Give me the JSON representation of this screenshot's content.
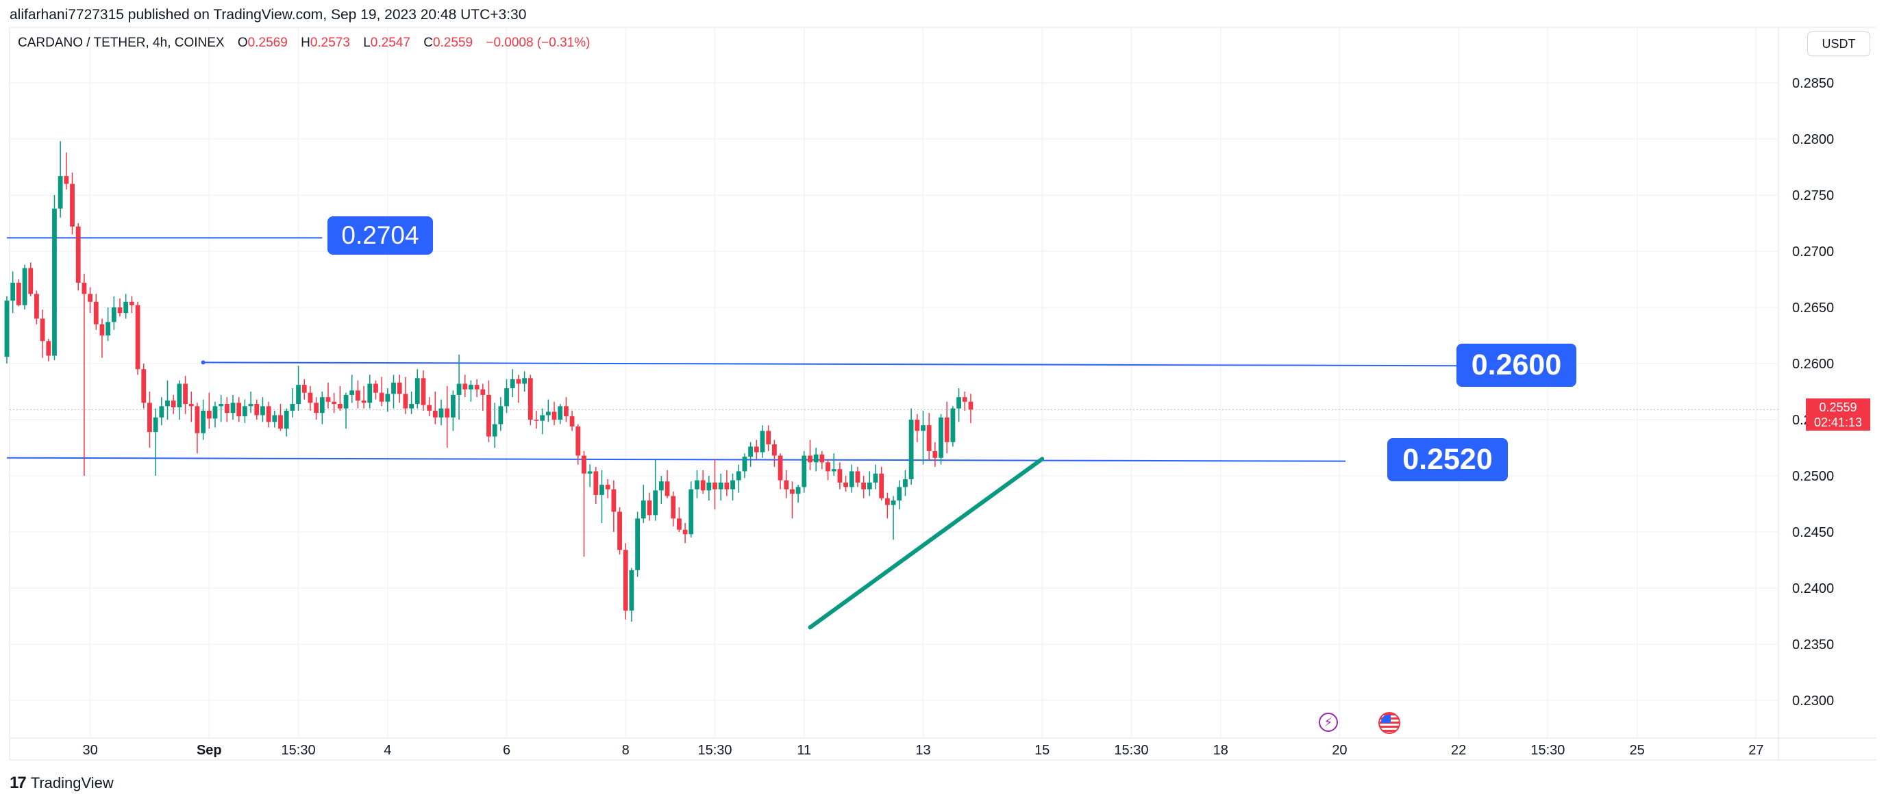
{
  "header": {
    "publisher_line": "alifarhani7727315 published on TradingView.com, Sep 19, 2023 20:48 UTC+3:30"
  },
  "legend": {
    "symbol": "CARDANO / TETHER, 4h, COINEX",
    "open_label": "O",
    "open": "0.2569",
    "high_label": "H",
    "high": "0.2573",
    "low_label": "L",
    "low": "0.2547",
    "close_label": "C",
    "close": "0.2559",
    "change": "−0.0008 (−0.31%)"
  },
  "currency_button": "USDT",
  "price_tag": {
    "price": "0.2559",
    "countdown": "02:41:13"
  },
  "callouts": [
    {
      "label": "0.2704"
    },
    {
      "label": "0.2600"
    },
    {
      "label": "0.2520"
    }
  ],
  "footer": {
    "brand": "TradingView",
    "mark": "17"
  },
  "colors": {
    "up": "#089981",
    "down": "#f23645",
    "drawing_line": "#2962ff",
    "trend_line": "#089981",
    "grid": "#f0f3fa",
    "callout_bg": "#2962ff"
  },
  "chart_data": {
    "type": "candlestick",
    "symbol": "CARDANO / TETHER",
    "interval": "4h",
    "exchange": "COINEX",
    "ylim": [
      0.2275,
      0.288
    ],
    "y_ticks": [
      "0.2850",
      "0.2800",
      "0.2750",
      "0.2700",
      "0.2650",
      "0.2600",
      "0.2550",
      "0.2500",
      "0.2450",
      "0.2400",
      "0.2350",
      "0.2300"
    ],
    "x_ticks": [
      {
        "label": "30",
        "bar": 14
      },
      {
        "label": "Sep",
        "bar": 34
      },
      {
        "label": "15:30",
        "bar": 49
      },
      {
        "label": "4",
        "bar": 64
      },
      {
        "label": "6",
        "bar": 84
      },
      {
        "label": "8",
        "bar": 104
      },
      {
        "label": "15:30",
        "bar": 119
      },
      {
        "label": "11",
        "bar": 134
      },
      {
        "label": "13",
        "bar": 154
      },
      {
        "label": "15",
        "bar": 174
      },
      {
        "label": "15:30",
        "bar": 189
      },
      {
        "label": "18",
        "bar": 204
      },
      {
        "label": "20",
        "bar": 224
      },
      {
        "label": "22",
        "bar": 244
      },
      {
        "label": "15:30",
        "bar": 259
      },
      {
        "label": "25",
        "bar": 274
      },
      {
        "label": "27",
        "bar": 294
      }
    ],
    "ohlc": [
      [
        0.2606,
        0.266,
        0.26,
        0.2656
      ],
      [
        0.2656,
        0.2682,
        0.2645,
        0.2672
      ],
      [
        0.2672,
        0.2675,
        0.2651,
        0.2652
      ],
      [
        0.2652,
        0.2688,
        0.2648,
        0.2685
      ],
      [
        0.2685,
        0.269,
        0.266,
        0.2662
      ],
      [
        0.2662,
        0.2665,
        0.2635,
        0.264
      ],
      [
        0.264,
        0.2648,
        0.2605,
        0.262
      ],
      [
        0.262,
        0.2622,
        0.2602,
        0.2607
      ],
      [
        0.2607,
        0.275,
        0.2603,
        0.2738
      ],
      [
        0.2738,
        0.2798,
        0.273,
        0.2767
      ],
      [
        0.2767,
        0.2788,
        0.2755,
        0.276
      ],
      [
        0.276,
        0.277,
        0.2715,
        0.2722
      ],
      [
        0.2722,
        0.2725,
        0.2665,
        0.2672
      ],
      [
        0.2672,
        0.268,
        0.25,
        0.2662
      ],
      [
        0.2662,
        0.2668,
        0.2645,
        0.2655
      ],
      [
        0.2655,
        0.2662,
        0.263,
        0.2635
      ],
      [
        0.2635,
        0.264,
        0.2605,
        0.2625
      ],
      [
        0.2625,
        0.265,
        0.262,
        0.2637
      ],
      [
        0.2637,
        0.266,
        0.263,
        0.265
      ],
      [
        0.265,
        0.2658,
        0.2642,
        0.2645
      ],
      [
        0.2645,
        0.2662,
        0.264,
        0.2655
      ],
      [
        0.2655,
        0.266,
        0.2645,
        0.2652
      ],
      [
        0.2652,
        0.2655,
        0.259,
        0.2595
      ],
      [
        0.2595,
        0.26,
        0.256,
        0.2565
      ],
      [
        0.2565,
        0.2575,
        0.2525,
        0.2539
      ],
      [
        0.2539,
        0.256,
        0.25,
        0.2552
      ],
      [
        0.2552,
        0.257,
        0.2545,
        0.2562
      ],
      [
        0.2562,
        0.2585,
        0.255,
        0.2567
      ],
      [
        0.2567,
        0.2572,
        0.2555,
        0.2561
      ],
      [
        0.2561,
        0.2585,
        0.255,
        0.2582
      ],
      [
        0.2582,
        0.2589,
        0.2555,
        0.2564
      ],
      [
        0.2564,
        0.2575,
        0.2548,
        0.2562
      ],
      [
        0.2562,
        0.2565,
        0.252,
        0.2538
      ],
      [
        0.2538,
        0.2568,
        0.2532,
        0.2558
      ],
      [
        0.2558,
        0.2574,
        0.2542,
        0.2551
      ],
      [
        0.2551,
        0.2566,
        0.2543,
        0.2562
      ],
      [
        0.2562,
        0.2572,
        0.2548,
        0.2564
      ],
      [
        0.2564,
        0.257,
        0.2548,
        0.2556
      ],
      [
        0.2556,
        0.2572,
        0.255,
        0.2565
      ],
      [
        0.2565,
        0.257,
        0.2548,
        0.2553
      ],
      [
        0.2553,
        0.2568,
        0.2547,
        0.2562
      ],
      [
        0.2562,
        0.2575,
        0.2556,
        0.2564
      ],
      [
        0.2564,
        0.2568,
        0.255,
        0.2554
      ],
      [
        0.2554,
        0.257,
        0.2548,
        0.2562
      ],
      [
        0.2562,
        0.2566,
        0.2543,
        0.2548
      ],
      [
        0.2548,
        0.2558,
        0.2543,
        0.2554
      ],
      [
        0.2554,
        0.2564,
        0.254,
        0.2542
      ],
      [
        0.2542,
        0.256,
        0.2535,
        0.2558
      ],
      [
        0.2558,
        0.2578,
        0.2552,
        0.2564
      ],
      [
        0.2564,
        0.2598,
        0.2558,
        0.2581
      ],
      [
        0.2581,
        0.2586,
        0.2568,
        0.2574
      ],
      [
        0.2574,
        0.258,
        0.2558,
        0.2565
      ],
      [
        0.2565,
        0.257,
        0.255,
        0.2556
      ],
      [
        0.2556,
        0.2575,
        0.2546,
        0.257
      ],
      [
        0.257,
        0.2583,
        0.256,
        0.2566
      ],
      [
        0.2566,
        0.2574,
        0.2556,
        0.2564
      ],
      [
        0.2564,
        0.258,
        0.2558,
        0.256
      ],
      [
        0.256,
        0.2574,
        0.2542,
        0.2572
      ],
      [
        0.2572,
        0.259,
        0.2565,
        0.2576
      ],
      [
        0.2576,
        0.2585,
        0.256,
        0.2567
      ],
      [
        0.2567,
        0.258,
        0.256,
        0.2565
      ],
      [
        0.2565,
        0.259,
        0.256,
        0.2582
      ],
      [
        0.2582,
        0.2585,
        0.2568,
        0.2574
      ],
      [
        0.2574,
        0.2588,
        0.2562,
        0.2566
      ],
      [
        0.2566,
        0.2578,
        0.2557,
        0.2573
      ],
      [
        0.2573,
        0.259,
        0.256,
        0.2583
      ],
      [
        0.2583,
        0.259,
        0.2565,
        0.2573
      ],
      [
        0.2573,
        0.2588,
        0.2555,
        0.256
      ],
      [
        0.256,
        0.2575,
        0.2555,
        0.2564
      ],
      [
        0.2564,
        0.2595,
        0.256,
        0.2587
      ],
      [
        0.2587,
        0.2594,
        0.2558,
        0.2563
      ],
      [
        0.2563,
        0.257,
        0.2553,
        0.2558
      ],
      [
        0.2558,
        0.2575,
        0.2546,
        0.2552
      ],
      [
        0.2552,
        0.2568,
        0.2545,
        0.256
      ],
      [
        0.256,
        0.258,
        0.2525,
        0.2552
      ],
      [
        0.2552,
        0.2576,
        0.254,
        0.2572
      ],
      [
        0.2572,
        0.2608,
        0.255,
        0.2582
      ],
      [
        0.2582,
        0.259,
        0.257,
        0.2577
      ],
      [
        0.2577,
        0.2585,
        0.2566,
        0.2581
      ],
      [
        0.2581,
        0.2586,
        0.257,
        0.2577
      ],
      [
        0.2577,
        0.2582,
        0.2558,
        0.2572
      ],
      [
        0.2572,
        0.2585,
        0.253,
        0.2535
      ],
      [
        0.2535,
        0.2565,
        0.2525,
        0.2546
      ],
      [
        0.2546,
        0.257,
        0.254,
        0.2562
      ],
      [
        0.2562,
        0.2586,
        0.2556,
        0.2578
      ],
      [
        0.2578,
        0.2595,
        0.257,
        0.2586
      ],
      [
        0.2586,
        0.259,
        0.2565,
        0.2582
      ],
      [
        0.2582,
        0.2593,
        0.2575,
        0.2587
      ],
      [
        0.2587,
        0.259,
        0.2545,
        0.255
      ],
      [
        0.255,
        0.2558,
        0.2542,
        0.2549
      ],
      [
        0.2549,
        0.256,
        0.2537,
        0.2554
      ],
      [
        0.2554,
        0.2568,
        0.2548,
        0.2557
      ],
      [
        0.2557,
        0.2566,
        0.2545,
        0.255
      ],
      [
        0.255,
        0.2564,
        0.2546,
        0.2562
      ],
      [
        0.2562,
        0.257,
        0.2548,
        0.2553
      ],
      [
        0.2553,
        0.2558,
        0.254,
        0.2544
      ],
      [
        0.2544,
        0.2546,
        0.251,
        0.2518
      ],
      [
        0.2518,
        0.2522,
        0.2428,
        0.2502
      ],
      [
        0.2502,
        0.251,
        0.249,
        0.2504
      ],
      [
        0.2504,
        0.2508,
        0.2475,
        0.2483
      ],
      [
        0.2483,
        0.2505,
        0.2458,
        0.2492
      ],
      [
        0.2492,
        0.2497,
        0.248,
        0.2488
      ],
      [
        0.2488,
        0.2496,
        0.245,
        0.2468
      ],
      [
        0.2468,
        0.2472,
        0.243,
        0.2434
      ],
      [
        0.2434,
        0.244,
        0.2372,
        0.238
      ],
      [
        0.238,
        0.2418,
        0.237,
        0.2416
      ],
      [
        0.2416,
        0.2468,
        0.241,
        0.2462
      ],
      [
        0.2462,
        0.2492,
        0.2458,
        0.2478
      ],
      [
        0.2478,
        0.2485,
        0.246,
        0.2465
      ],
      [
        0.2465,
        0.2515,
        0.246,
        0.2487
      ],
      [
        0.2487,
        0.25,
        0.2475,
        0.2495
      ],
      [
        0.2495,
        0.2505,
        0.248,
        0.2482
      ],
      [
        0.2482,
        0.2486,
        0.2455,
        0.2462
      ],
      [
        0.2462,
        0.2472,
        0.245,
        0.2452
      ],
      [
        0.2452,
        0.2458,
        0.244,
        0.2448
      ],
      [
        0.2448,
        0.2495,
        0.2445,
        0.2488
      ],
      [
        0.2488,
        0.2505,
        0.248,
        0.2496
      ],
      [
        0.2496,
        0.2505,
        0.2484,
        0.2487
      ],
      [
        0.2487,
        0.25,
        0.2478,
        0.2494
      ],
      [
        0.2494,
        0.2515,
        0.247,
        0.2488
      ],
      [
        0.2488,
        0.2502,
        0.2478,
        0.2494
      ],
      [
        0.2494,
        0.2505,
        0.2482,
        0.2488
      ],
      [
        0.2488,
        0.2502,
        0.2478,
        0.2496
      ],
      [
        0.2496,
        0.251,
        0.2485,
        0.2504
      ],
      [
        0.2504,
        0.252,
        0.2498,
        0.2517
      ],
      [
        0.2517,
        0.253,
        0.2508,
        0.2526
      ],
      [
        0.2526,
        0.2532,
        0.2515,
        0.2521
      ],
      [
        0.2521,
        0.2545,
        0.2516,
        0.254
      ],
      [
        0.254,
        0.2545,
        0.2522,
        0.2528
      ],
      [
        0.2528,
        0.2532,
        0.2508,
        0.2518
      ],
      [
        0.2518,
        0.252,
        0.2488,
        0.2496
      ],
      [
        0.2496,
        0.2505,
        0.248,
        0.2488
      ],
      [
        0.2488,
        0.2495,
        0.2462,
        0.2484
      ],
      [
        0.2484,
        0.2492,
        0.2476,
        0.249
      ],
      [
        0.249,
        0.2522,
        0.2485,
        0.2518
      ],
      [
        0.2518,
        0.2532,
        0.2505,
        0.2512
      ],
      [
        0.2512,
        0.2525,
        0.2504,
        0.2519
      ],
      [
        0.2519,
        0.2522,
        0.2506,
        0.2512
      ],
      [
        0.2512,
        0.2515,
        0.2496,
        0.2504
      ],
      [
        0.2504,
        0.252,
        0.25,
        0.2506
      ],
      [
        0.2506,
        0.2512,
        0.2488,
        0.2494
      ],
      [
        0.2494,
        0.25,
        0.2486,
        0.249
      ],
      [
        0.249,
        0.251,
        0.2485,
        0.2504
      ],
      [
        0.2504,
        0.2508,
        0.249,
        0.2494
      ],
      [
        0.2494,
        0.25,
        0.248,
        0.2488
      ],
      [
        0.2488,
        0.2504,
        0.2482,
        0.2494
      ],
      [
        0.2494,
        0.251,
        0.2488,
        0.2502
      ],
      [
        0.2502,
        0.2508,
        0.2478,
        0.248
      ],
      [
        0.248,
        0.2485,
        0.2462,
        0.2474
      ],
      [
        0.2474,
        0.2482,
        0.2443,
        0.2478
      ],
      [
        0.2478,
        0.2496,
        0.247,
        0.249
      ],
      [
        0.249,
        0.2505,
        0.2482,
        0.2497
      ],
      [
        0.2497,
        0.256,
        0.2492,
        0.255
      ],
      [
        0.255,
        0.2555,
        0.253,
        0.254
      ],
      [
        0.254,
        0.2558,
        0.251,
        0.2545
      ],
      [
        0.2545,
        0.2556,
        0.2514,
        0.2522
      ],
      [
        0.2522,
        0.253,
        0.2508,
        0.2516
      ],
      [
        0.2516,
        0.2555,
        0.251,
        0.2552
      ],
      [
        0.2552,
        0.2566,
        0.252,
        0.253
      ],
      [
        0.253,
        0.2562,
        0.2526,
        0.256
      ],
      [
        0.256,
        0.2578,
        0.2548,
        0.257
      ],
      [
        0.257,
        0.2575,
        0.2558,
        0.2566
      ],
      [
        0.2566,
        0.2573,
        0.2547,
        0.2559
      ]
    ],
    "drawings": {
      "horizontal_levels": [
        {
          "label": "0.2704",
          "from_bar": 0,
          "to_bar": 53,
          "y": 0.2712
        },
        {
          "label": "0.2600",
          "from_bar": 33,
          "to_bar": 244,
          "y_start": 0.2601,
          "y_end": 0.2598
        },
        {
          "label": "0.2520",
          "from_bar": 0,
          "to_bar": 225,
          "y_start": 0.2516,
          "y_end": 0.2513
        }
      ],
      "trend_line": {
        "from": {
          "bar": 135,
          "y": 0.2365
        },
        "to": {
          "bar": 174,
          "y": 0.2515
        }
      }
    }
  }
}
